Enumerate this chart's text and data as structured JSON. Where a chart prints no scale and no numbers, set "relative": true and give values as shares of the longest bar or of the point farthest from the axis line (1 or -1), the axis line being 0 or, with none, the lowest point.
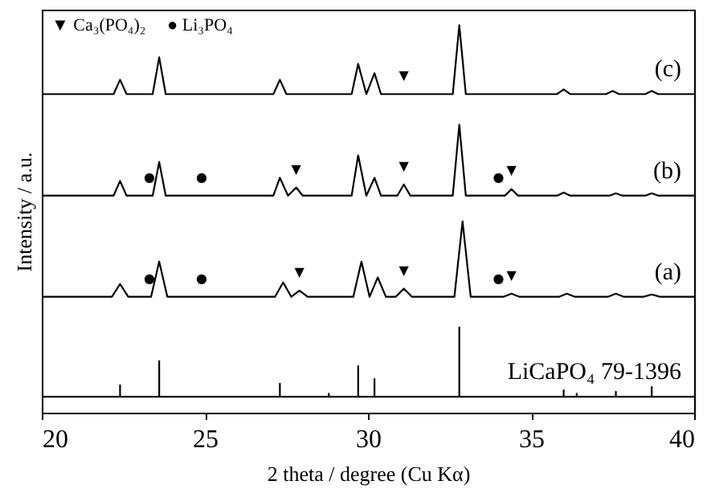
{
  "chart_data": {
    "type": "line",
    "relative": true,
    "xlabel": "2 theta / degree (Cu Kα)",
    "ylabel": "Intensity / a.u.",
    "xlim": [
      20,
      40
    ],
    "xticks": [
      20,
      25,
      30,
      35,
      40
    ],
    "line_style": "solid",
    "series": [
      {
        "name": "(c)",
        "color": "#000000",
        "x": [
          20,
          22.2,
          22.4,
          22.6,
          23.4,
          23.6,
          23.8,
          27.1,
          27.3,
          27.5,
          29.5,
          29.7,
          29.95,
          30.2,
          30.4,
          32.6,
          32.8,
          33.0,
          35.8,
          36.0,
          36.2,
          37.3,
          37.5,
          37.7,
          38.5,
          38.7,
          38.9,
          40
        ],
        "values": [
          0.822,
          0.822,
          0.859,
          0.822,
          0.822,
          0.917,
          0.822,
          0.822,
          0.859,
          0.822,
          0.822,
          0.9,
          0.822,
          0.876,
          0.822,
          0.822,
          1.0,
          0.822,
          0.822,
          0.834,
          0.822,
          0.822,
          0.83,
          0.822,
          0.822,
          0.83,
          0.822,
          0.822
        ]
      },
      {
        "name": "(b)",
        "color": "#000000",
        "x": [
          20,
          22.2,
          22.4,
          22.6,
          23.4,
          23.6,
          23.8,
          27.1,
          27.3,
          27.55,
          27.8,
          28.0,
          29.5,
          29.7,
          29.95,
          30.2,
          30.4,
          30.9,
          31.1,
          31.3,
          32.6,
          32.8,
          33.0,
          34.2,
          34.4,
          34.6,
          35.8,
          36.0,
          36.2,
          37.4,
          37.6,
          37.8,
          38.5,
          38.7,
          38.9,
          40
        ],
        "values": [
          0.56,
          0.56,
          0.598,
          0.56,
          0.56,
          0.647,
          0.56,
          0.56,
          0.606,
          0.56,
          0.581,
          0.56,
          0.56,
          0.664,
          0.56,
          0.606,
          0.56,
          0.56,
          0.589,
          0.56,
          0.56,
          0.743,
          0.56,
          0.56,
          0.577,
          0.56,
          0.56,
          0.568,
          0.56,
          0.56,
          0.566,
          0.56,
          0.56,
          0.566,
          0.56,
          0.56
        ]
      },
      {
        "name": "(a)",
        "color": "#000000",
        "x": [
          20,
          22.15,
          22.4,
          22.65,
          23.35,
          23.6,
          23.85,
          27.15,
          27.4,
          27.65,
          27.9,
          28.15,
          29.55,
          29.8,
          30.05,
          30.3,
          30.55,
          30.85,
          31.1,
          31.35,
          32.65,
          32.9,
          33.15,
          34.15,
          34.4,
          34.65,
          35.85,
          36.1,
          36.35,
          37.35,
          37.6,
          37.85,
          38.45,
          38.7,
          38.95,
          40
        ],
        "values": [
          0.299,
          0.299,
          0.332,
          0.299,
          0.299,
          0.39,
          0.299,
          0.299,
          0.336,
          0.299,
          0.315,
          0.299,
          0.299,
          0.39,
          0.299,
          0.349,
          0.299,
          0.299,
          0.32,
          0.299,
          0.299,
          0.494,
          0.299,
          0.299,
          0.307,
          0.299,
          0.299,
          0.307,
          0.299,
          0.299,
          0.307,
          0.299,
          0.299,
          0.305,
          0.299,
          0.299
        ]
      },
      {
        "name": "LiCaPO₄ 79-1396",
        "color": "#000000",
        "x": [
          20,
          22.4,
          22.4,
          22.4,
          23.6,
          23.6,
          23.6,
          27.3,
          27.3,
          27.3,
          28.8,
          28.8,
          28.8,
          29.7,
          29.7,
          29.7,
          30.2,
          30.2,
          30.2,
          32.8,
          32.8,
          32.8,
          36.0,
          36.0,
          36.0,
          36.4,
          36.4,
          36.4,
          37.6,
          37.6,
          37.6,
          38.7,
          38.7,
          38.7,
          40
        ],
        "values": [
          0.041,
          0.041,
          0.071,
          0.041,
          0.041,
          0.133,
          0.041,
          0.041,
          0.075,
          0.041,
          0.041,
          0.049,
          0.041,
          0.041,
          0.12,
          0.041,
          0.041,
          0.087,
          0.041,
          0.041,
          0.22,
          0.041,
          0.041,
          0.058,
          0.041,
          0.041,
          0.049,
          0.041,
          0.041,
          0.054,
          0.041,
          0.041,
          0.066,
          0.041,
          0.041
        ]
      }
    ],
    "annotations": [
      "▼ Ca₃(PO₄)₂",
      "● Li₃PO₄",
      {
        "text": "▼",
        "x": 31.1,
        "y": 0.822
      },
      {
        "text": "●",
        "x": 23.3,
        "y": 0.56
      },
      {
        "text": "●",
        "x": 24.9,
        "y": 0.56
      },
      {
        "text": "▼",
        "x": 27.8,
        "y": 0.581
      },
      {
        "text": "▼",
        "x": 31.1,
        "y": 0.589
      },
      {
        "text": "●",
        "x": 34.0,
        "y": 0.56
      },
      {
        "text": "▼",
        "x": 34.4,
        "y": 0.577
      },
      {
        "text": "●",
        "x": 23.3,
        "y": 0.299
      },
      {
        "text": "●",
        "x": 24.9,
        "y": 0.299
      },
      {
        "text": "▼",
        "x": 27.9,
        "y": 0.315
      },
      {
        "text": "▼",
        "x": 31.1,
        "y": 0.32
      },
      {
        "text": "●",
        "x": 34.0,
        "y": 0.299
      },
      {
        "text": "▼",
        "x": 34.4,
        "y": 0.307
      }
    ]
  }
}
